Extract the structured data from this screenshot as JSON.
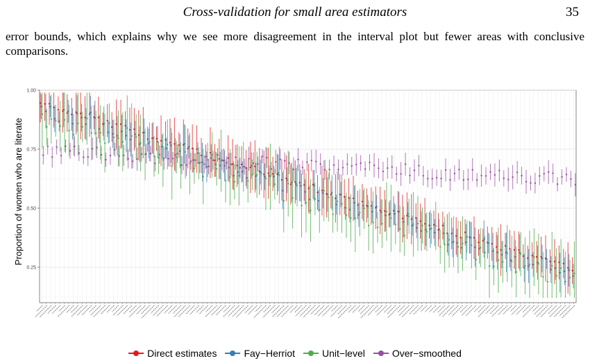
{
  "header": {
    "running_title": "Cross-validation for small area estimators",
    "page_number": "35"
  },
  "body_text": "error bounds, which explains why we see more disagreement in the interval plot but fewer areas with conclusive comparisons.",
  "chart_data": {
    "type": "interval",
    "title": "",
    "xlabel": "",
    "ylabel": "Proportion of women who are literate",
    "ylim": [
      0.1,
      1.0
    ],
    "yticks": [
      0.25,
      0.5,
      0.75,
      1.0
    ],
    "ytick_labels": [
      "0.25",
      "0.50",
      "0.75",
      "1.00"
    ],
    "grid": true,
    "legend_position": "bottom",
    "n_areas": 120,
    "colors": {
      "Direct estimates": "#e41a1c",
      "Fay-Herriot": "#377eb8",
      "Unit-level": "#4daf4a",
      "Over-smoothed": "#984ea3"
    },
    "series": [
      {
        "name": "Direct estimates",
        "start": 0.95,
        "end": 0.24,
        "halfwidth": 0.07
      },
      {
        "name": "Fay−Herriot",
        "offset": -0.02,
        "halfwidth": 0.06
      },
      {
        "name": "Unit−level",
        "offset": -0.05,
        "halfwidth": 0.09
      },
      {
        "name": "Over−smoothed",
        "offset": 0.0,
        "halfwidth": 0.04
      }
    ],
    "legend": [
      {
        "label": "Direct estimates",
        "color": "#e41a1c"
      },
      {
        "label": "Fay−Herriot",
        "color": "#377eb8"
      },
      {
        "label": "Unit−level",
        "color": "#4daf4a"
      },
      {
        "label": "Over−smoothed",
        "color": "#984ea3"
      }
    ]
  }
}
